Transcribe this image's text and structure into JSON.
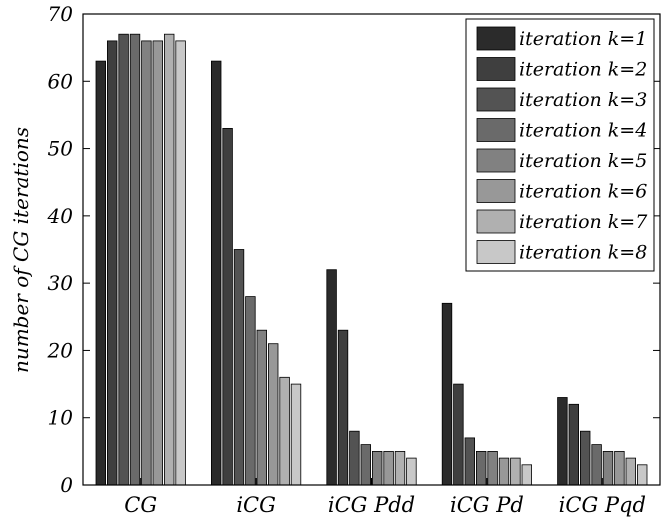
{
  "chart_data": {
    "type": "bar",
    "title": "",
    "xlabel": "",
    "ylabel": "number of CG iterations",
    "ylim": [
      0,
      70
    ],
    "yticks": [
      0,
      10,
      20,
      30,
      40,
      50,
      60,
      70
    ],
    "categories": [
      "CG",
      "iCG",
      "iCG Pdd",
      "iCG Pd",
      "iCG Pqd"
    ],
    "legend_position": "top-right",
    "grid": false,
    "series": [
      {
        "name": "iteration k=1",
        "color": "#2b2b2b",
        "values": [
          63,
          63,
          32,
          27,
          13
        ]
      },
      {
        "name": "iteration k=2",
        "color": "#3f3f3f",
        "values": [
          66,
          53,
          23,
          15,
          12
        ]
      },
      {
        "name": "iteration k=3",
        "color": "#535353",
        "values": [
          67,
          35,
          8,
          7,
          8
        ]
      },
      {
        "name": "iteration k=4",
        "color": "#6a6a6a",
        "values": [
          67,
          28,
          6,
          5,
          6
        ]
      },
      {
        "name": "iteration k=5",
        "color": "#818181",
        "values": [
          66,
          23,
          5,
          5,
          5
        ]
      },
      {
        "name": "iteration k=6",
        "color": "#989898",
        "values": [
          66,
          21,
          5,
          4,
          5
        ]
      },
      {
        "name": "iteration k=7",
        "color": "#b0b0b0",
        "values": [
          67,
          16,
          5,
          4,
          4
        ]
      },
      {
        "name": "iteration k=8",
        "color": "#c8c8c8",
        "values": [
          66,
          15,
          4,
          3,
          3
        ]
      }
    ]
  }
}
